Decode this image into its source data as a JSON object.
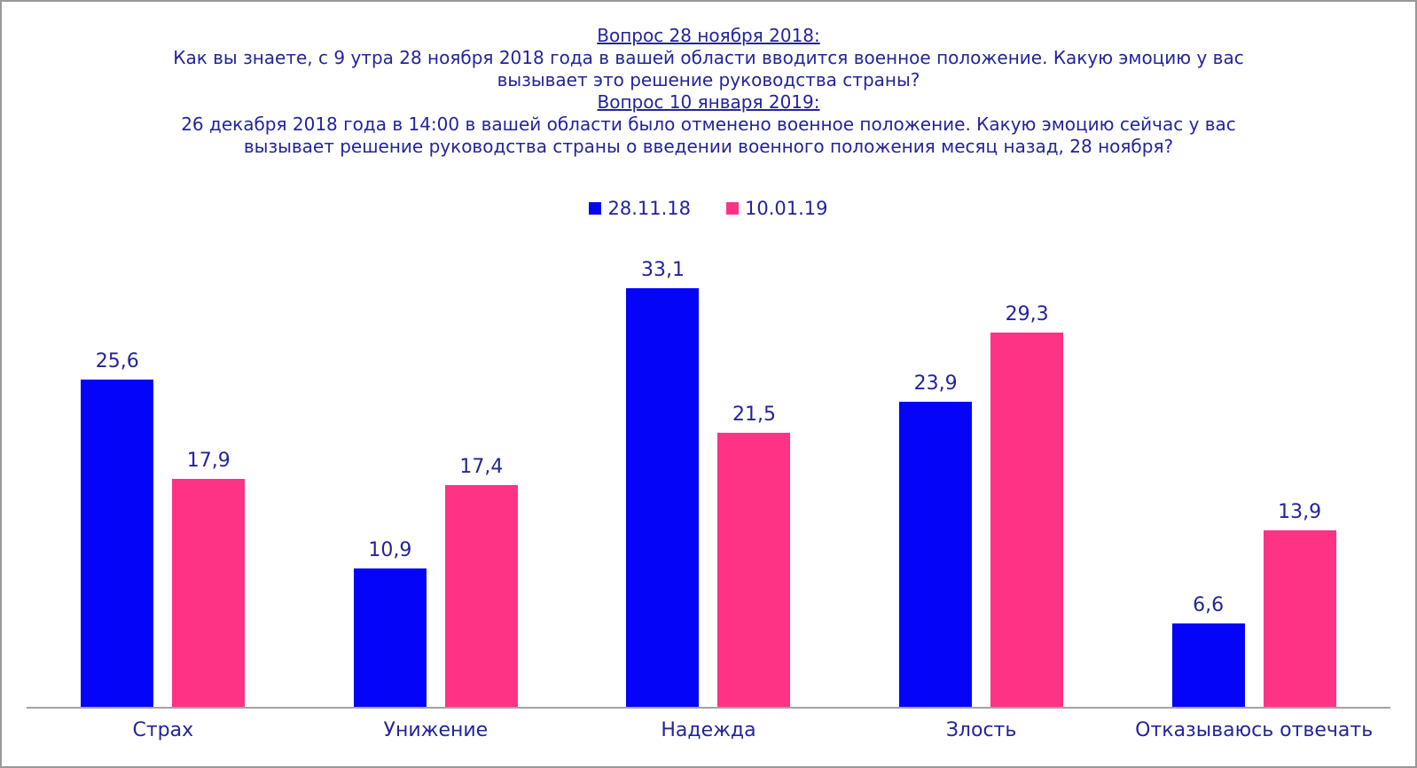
{
  "title": {
    "lines": [
      {
        "text": "Вопрос 28 ноября 2018:",
        "underline": true
      },
      {
        "text": "Как вы знаете, с 9 утра 28 ноября 2018 года в вашей области вводится военное положение. Какую эмоцию у вас",
        "underline": false
      },
      {
        "text": "вызывает это решение руководства страны?",
        "underline": false
      },
      {
        "text": "Вопрос 10 января 2019:",
        "underline": true
      },
      {
        "text": "26 декабря 2018 года в 14:00 в вашей области было отменено военное положение. Какую эмоцию сейчас у вас",
        "underline": false
      },
      {
        "text": "вызывает решение руководства страны о введении военного положения месяц назад, 28 ноября?",
        "underline": false
      }
    ]
  },
  "legend": {
    "items": [
      {
        "label": "28.11.18",
        "color": "#0404F8"
      },
      {
        "label": "10.01.19",
        "color": "#FF3385"
      }
    ]
  },
  "chart_data": {
    "type": "bar",
    "categories": [
      "Страх",
      "Унижение",
      "Надежда",
      "Злость",
      "Отказываюсь отвечать"
    ],
    "series": [
      {
        "name": "28.11.18",
        "color": "#0404F8",
        "values": [
          25.6,
          10.9,
          33.1,
          23.9,
          6.6
        ]
      },
      {
        "name": "10.01.19",
        "color": "#FF3385",
        "values": [
          17.9,
          17.4,
          21.5,
          29.3,
          13.9
        ]
      }
    ],
    "value_labels": {
      "28.11.18": [
        "25,6",
        "10,9",
        "33,1",
        "23,9",
        "6,6"
      ],
      "10.01.19": [
        "17,9",
        "17,4",
        "21,5",
        "29,3",
        "13,9"
      ]
    },
    "ylim": [
      0,
      35
    ],
    "grid": false,
    "legend_position": "top-center",
    "decimal_separator": ","
  },
  "colors": {
    "text": "#24249C",
    "axis_line": "#A3A3A3",
    "frame_border": "#999999",
    "background": "#FFFFFF"
  }
}
